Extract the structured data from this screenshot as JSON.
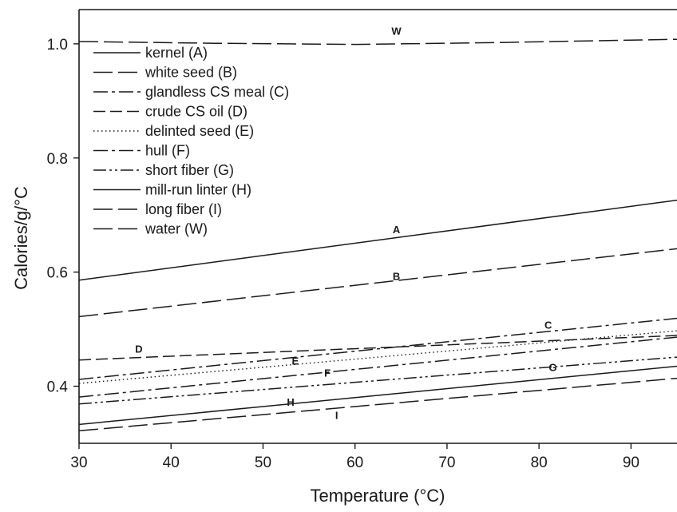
{
  "chart_data": {
    "type": "line",
    "title": "",
    "xlabel": "Temperature (°C)",
    "ylabel": "Calories/g/°C",
    "xlim": [
      30,
      95
    ],
    "ylim": [
      0.3,
      1.06
    ],
    "xticks": [
      30,
      40,
      50,
      60,
      70,
      80,
      90
    ],
    "xtick_labels": [
      "30",
      "40",
      "50",
      "60",
      "70",
      "80",
      "90"
    ],
    "yticks": [
      0.4,
      0.6,
      0.8,
      1.0
    ],
    "ytick_labels": [
      "0.4",
      "0.6",
      "0.8",
      "1.0"
    ],
    "grid": false,
    "legend_position": "top-left",
    "series": [
      {
        "name": "kernel (A)",
        "label": "A",
        "style": "solid",
        "x": [
          30,
          95
        ],
        "y": [
          0.586,
          0.726
        ],
        "label_x": 64.5,
        "label_y": 0.675
      },
      {
        "name": "white seed (B)",
        "label": "B",
        "style": "longdash",
        "x": [
          30,
          95
        ],
        "y": [
          0.522,
          0.641
        ],
        "label_x": 64.5,
        "label_y": 0.593
      },
      {
        "name": "glandless CS meal (C)",
        "label": "C",
        "style": "dashdot",
        "x": [
          30,
          95
        ],
        "y": [
          0.412,
          0.519
        ],
        "label_x": 81.0,
        "label_y": 0.508
      },
      {
        "name": "crude CS oil (D)",
        "label": "D",
        "style": "dash",
        "x": [
          30,
          95
        ],
        "y": [
          0.446,
          0.489
        ],
        "label_x": 36.5,
        "label_y": 0.466
      },
      {
        "name": "delinted seed (E)",
        "label": "E",
        "style": "dotted",
        "x": [
          30,
          95
        ],
        "y": [
          0.405,
          0.497
        ],
        "label_x": 53.5,
        "label_y": 0.445
      },
      {
        "name": "hull (F)",
        "label": "F",
        "style": "dashdot",
        "x": [
          30,
          95
        ],
        "y": [
          0.381,
          0.486
        ],
        "label_x": 57.0,
        "label_y": 0.424
      },
      {
        "name": "short fiber (G)",
        "label": "G",
        "style": "dashdotdot",
        "x": [
          30,
          95
        ],
        "y": [
          0.369,
          0.451
        ],
        "label_x": 81.5,
        "label_y": 0.434
      },
      {
        "name": "mill-run linter (H)",
        "label": "H",
        "style": "solid",
        "x": [
          30,
          95
        ],
        "y": [
          0.333,
          0.435
        ],
        "label_x": 53.0,
        "label_y": 0.373
      },
      {
        "name": "long fiber (I)",
        "label": "I",
        "style": "longdash",
        "x": [
          30,
          95
        ],
        "y": [
          0.322,
          0.414
        ],
        "label_x": 58.0,
        "label_y": 0.35
      },
      {
        "name": "water (W)",
        "label": "W",
        "style": "longdash",
        "x": [
          30,
          45,
          60,
          75,
          95
        ],
        "y": [
          1.004,
          1.001,
          0.999,
          1.002,
          1.008
        ],
        "label_x": 64.5,
        "label_y": 1.023
      }
    ]
  }
}
